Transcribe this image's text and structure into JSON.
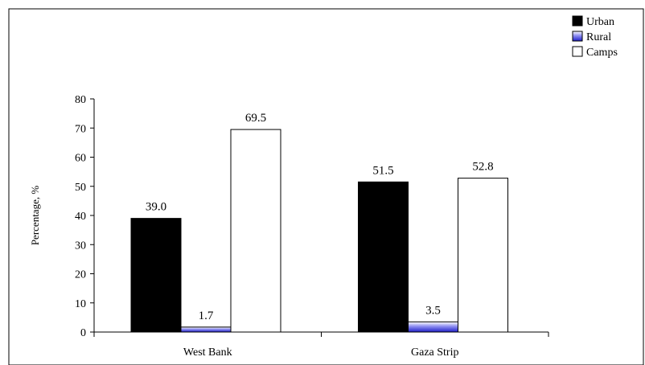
{
  "chart_data": {
    "type": "bar",
    "categories": [
      "West Bank",
      "Gaza Strip"
    ],
    "series": [
      {
        "name": "Urban",
        "values": [
          39.0,
          51.5
        ],
        "labels": [
          "39.0",
          "51.5"
        ]
      },
      {
        "name": "Rural",
        "values": [
          1.7,
          3.5
        ],
        "labels": [
          "1.7",
          "3.5"
        ]
      },
      {
        "name": "Camps",
        "values": [
          69.5,
          52.8
        ],
        "labels": [
          "69.5",
          "52.8"
        ]
      }
    ],
    "ylabel": "Percentage, %",
    "xlabel": "",
    "ylim": [
      0,
      80
    ],
    "yticks": [
      0,
      10,
      20,
      30,
      40,
      50,
      60,
      70,
      80
    ],
    "grid": false,
    "legend_position": "top-right",
    "colors": {
      "Urban": "#000000",
      "Rural": "#3b3bd6",
      "Camps": "#ffffff"
    }
  }
}
